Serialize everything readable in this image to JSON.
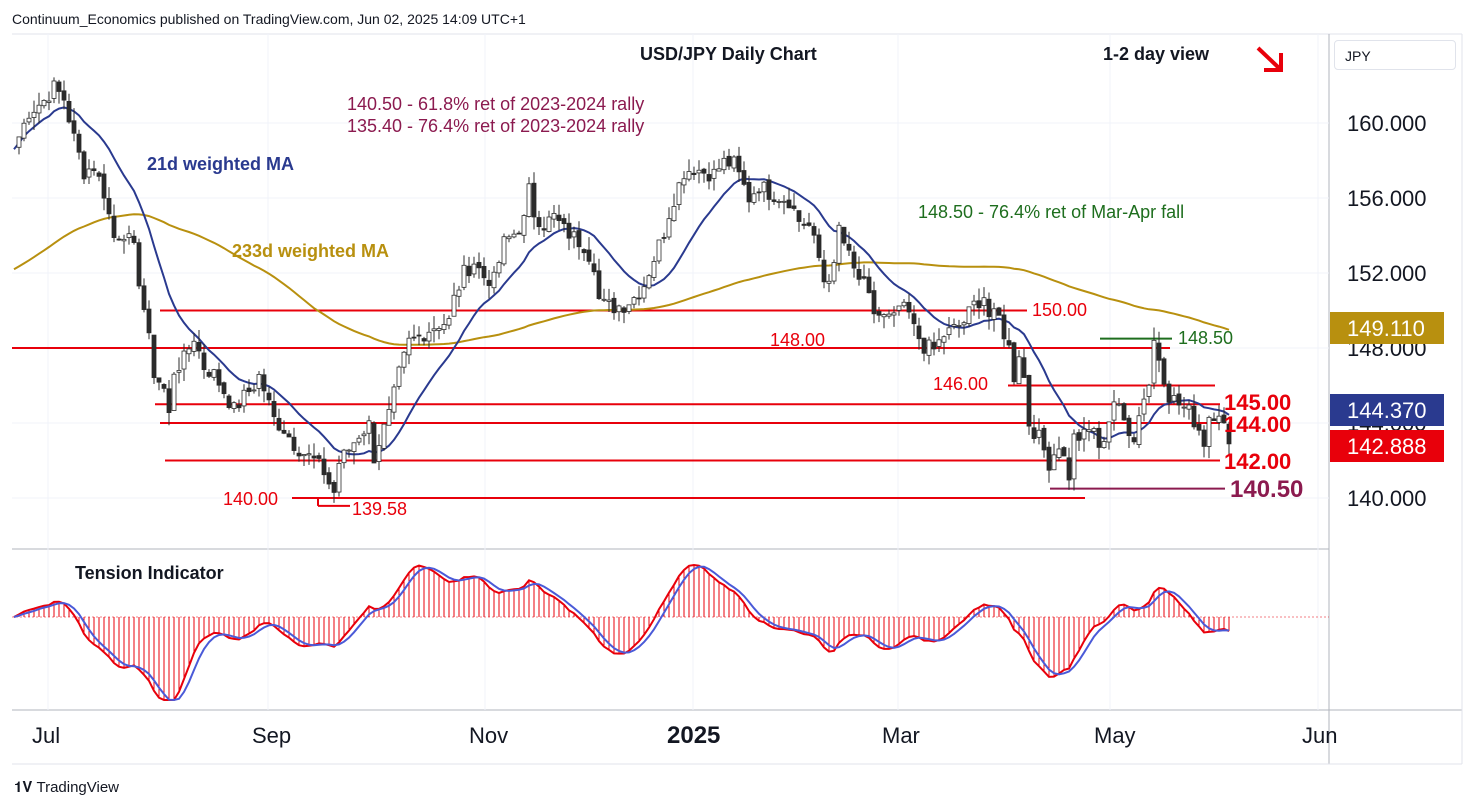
{
  "header": "Continuum_Economics published on TradingView.com, Jun 02, 2025 14:09 UTC+1",
  "footer_brand": "TradingView",
  "currency": "JPY",
  "colors": {
    "up": "#4a4a4a",
    "down": "#4a4a4a",
    "ma21": "#2a3a8f",
    "ma233": "#b8900f",
    "level": "#e8000b",
    "fib": "#8b1a4f",
    "green": "#1e6e1e",
    "arrow": "#e8000b"
  },
  "chart_data": [
    {
      "type": "candlestick",
      "title": "USD/JPY Daily Chart",
      "view": "1-2 day view",
      "view_direction": "down",
      "x_ticks": [
        "Jul",
        "Sep",
        "Nov",
        "2025",
        "Mar",
        "May",
        "Jun"
      ],
      "y_ticks": [
        "140.000",
        "144.000",
        "148.000",
        "152.000",
        "156.000",
        "160.000"
      ],
      "ylim": [
        137.5,
        163.5
      ],
      "last_close": 142.888,
      "price_tags": [
        {
          "label": "149.110",
          "value": 149.11,
          "color": "#b8900f"
        },
        {
          "label": "144.370",
          "value": 144.37,
          "color": "#2a3a8f"
        },
        {
          "label": "142.888",
          "value": 142.888,
          "color": "#e8000b"
        }
      ],
      "series": [
        {
          "name": "21d weighted MA",
          "color": "#2a3a8f"
        },
        {
          "name": "233d weighted MA",
          "color": "#b8900f"
        }
      ],
      "annotations": [
        {
          "text": "140.50 - 61.8% ret of 2023-2024 rally",
          "color": "#8b1a4f"
        },
        {
          "text": "135.40 - 76.4% ret of 2023-2024 rally",
          "color": "#8b1a4f"
        },
        {
          "text": "148.50 - 76.4% ret of Mar-Apr fall",
          "color": "#1e6e1e"
        }
      ],
      "levels": [
        {
          "label": "150.00",
          "value": 150.0,
          "color": "#e8000b"
        },
        {
          "label": "148.00",
          "value": 148.0,
          "color": "#e8000b"
        },
        {
          "label": "148.50",
          "value": 148.5,
          "color": "#1e6e1e"
        },
        {
          "label": "146.00",
          "value": 146.0,
          "color": "#e8000b"
        },
        {
          "label": "145.00",
          "value": 145.0,
          "color": "#e8000b"
        },
        {
          "label": "144.00",
          "value": 144.0,
          "color": "#e8000b"
        },
        {
          "label": "142.00",
          "value": 142.0,
          "color": "#e8000b"
        },
        {
          "label": "140.50",
          "value": 140.5,
          "color": "#8b1a4f"
        },
        {
          "label": "140.00",
          "value": 140.0,
          "color": "#e8000b"
        },
        {
          "label": "139.58",
          "value": 139.58,
          "color": "#e8000b"
        }
      ],
      "close_path": [
        [
          0,
          158.6
        ],
        [
          3,
          160.6
        ],
        [
          6,
          161.2
        ],
        [
          8,
          161.9
        ],
        [
          10,
          161.3
        ],
        [
          12,
          159.2
        ],
        [
          14,
          157.4
        ],
        [
          16,
          157.7
        ],
        [
          18,
          156.3
        ],
        [
          20,
          153.9
        ],
        [
          22,
          154.2
        ],
        [
          24,
          153.2
        ],
        [
          26,
          150.1
        ],
        [
          28,
          146.7
        ],
        [
          30,
          145.8
        ],
        [
          31,
          144.4
        ],
        [
          32,
          146.8
        ],
        [
          34,
          147.4
        ],
        [
          36,
          148.6
        ],
        [
          38,
          147.0
        ],
        [
          40,
          146.6
        ],
        [
          42,
          145.7
        ],
        [
          44,
          144.7
        ],
        [
          46,
          145.4
        ],
        [
          48,
          146.0
        ],
        [
          49,
          146.5
        ],
        [
          50,
          145.8
        ],
        [
          52,
          144.2
        ],
        [
          54,
          143.7
        ],
        [
          56,
          142.9
        ],
        [
          58,
          142.4
        ],
        [
          60,
          142.0
        ],
        [
          62,
          141.4
        ],
        [
          63,
          140.8
        ],
        [
          64,
          140.3
        ],
        [
          65,
          141.9
        ],
        [
          67,
          142.6
        ],
        [
          69,
          143.4
        ],
        [
          71,
          143.9
        ],
        [
          72,
          142.2
        ],
        [
          73,
          143.0
        ],
        [
          75,
          144.4
        ],
        [
          77,
          146.6
        ],
        [
          79,
          148.3
        ],
        [
          81,
          148.6
        ],
        [
          83,
          149.0
        ],
        [
          85,
          149.3
        ],
        [
          87,
          149.4
        ],
        [
          88,
          150.6
        ],
        [
          90,
          152.0
        ],
        [
          92,
          152.6
        ],
        [
          94,
          151.8
        ],
        [
          96,
          151.6
        ],
        [
          98,
          153.6
        ],
        [
          100,
          154.1
        ],
        [
          102,
          154.8
        ],
        [
          103,
          156.4
        ],
        [
          104,
          155.2
        ],
        [
          106,
          154.6
        ],
        [
          108,
          155.0
        ],
        [
          110,
          154.3
        ],
        [
          112,
          153.9
        ],
        [
          114,
          153.5
        ],
        [
          116,
          152.5
        ],
        [
          117,
          150.6
        ],
        [
          118,
          150.3
        ],
        [
          120,
          150.2
        ],
        [
          122,
          150.3
        ],
        [
          124,
          150.7
        ],
        [
          126,
          151.4
        ],
        [
          128,
          152.8
        ],
        [
          130,
          154.2
        ],
        [
          131,
          155.2
        ],
        [
          132,
          156.0
        ],
        [
          134,
          157.4
        ],
        [
          136,
          157.6
        ],
        [
          138,
          157.4
        ],
        [
          140,
          157.3
        ],
        [
          142,
          157.9
        ],
        [
          144,
          157.8
        ],
        [
          145,
          157.2
        ],
        [
          147,
          156.0
        ],
        [
          149,
          156.7
        ],
        [
          151,
          156.3
        ],
        [
          153,
          156.1
        ],
        [
          155,
          155.9
        ],
        [
          157,
          154.8
        ],
        [
          159,
          154.5
        ],
        [
          161,
          152.8
        ],
        [
          162,
          151.6
        ],
        [
          164,
          152.2
        ],
        [
          165,
          154.4
        ],
        [
          166,
          153.6
        ],
        [
          168,
          152.1
        ],
        [
          170,
          151.3
        ],
        [
          172,
          149.9
        ],
        [
          174,
          149.6
        ],
        [
          176,
          149.5
        ],
        [
          177,
          150.2
        ],
        [
          179,
          149.8
        ],
        [
          180,
          149.0
        ],
        [
          182,
          148.1
        ],
        [
          184,
          147.9
        ],
        [
          186,
          148.7
        ],
        [
          188,
          149.0
        ],
        [
          190,
          149.4
        ],
        [
          192,
          150.3
        ],
        [
          194,
          150.8
        ],
        [
          195,
          149.7
        ],
        [
          197,
          149.6
        ],
        [
          199,
          148.0
        ],
        [
          200,
          146.5
        ],
        [
          201,
          147.8
        ],
        [
          202,
          146.4
        ],
        [
          203,
          144.0
        ],
        [
          205,
          143.2
        ],
        [
          207,
          141.9
        ],
        [
          209,
          142.9
        ],
        [
          210,
          142.1
        ],
        [
          211,
          141.2
        ],
        [
          212,
          143.2
        ],
        [
          214,
          143.3
        ],
        [
          216,
          143.8
        ],
        [
          217,
          142.4
        ],
        [
          219,
          144.2
        ],
        [
          220,
          145.2
        ],
        [
          222,
          144.1
        ],
        [
          224,
          143.3
        ],
        [
          226,
          145.5
        ],
        [
          227,
          146.1
        ],
        [
          228,
          148.4
        ],
        [
          229,
          147.5
        ],
        [
          231,
          145.5
        ],
        [
          233,
          145.0
        ],
        [
          235,
          144.6
        ],
        [
          237,
          143.7
        ],
        [
          238,
          143.0
        ],
        [
          239,
          144.4
        ],
        [
          241,
          144.7
        ],
        [
          242,
          143.8
        ],
        [
          243,
          142.888
        ]
      ]
    },
    {
      "type": "histogram",
      "title": "Tension Indicator",
      "color": "#e8000b"
    }
  ]
}
